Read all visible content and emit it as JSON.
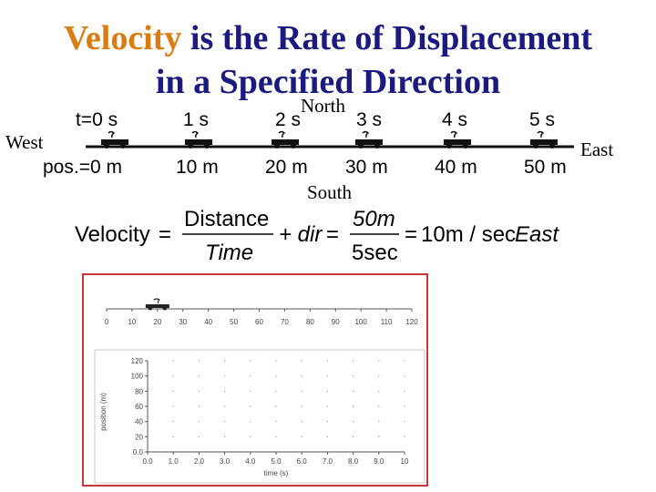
{
  "title": {
    "highlight": "Velocity",
    "line1_rest": " is the Rate of Displacement",
    "line2": "in a Specified Direction"
  },
  "compass": {
    "north": "North",
    "south": "South",
    "east": "East",
    "west": "West"
  },
  "timeline": {
    "times": [
      "t=0 s",
      "1 s",
      "2 s",
      "3 s",
      "4 s",
      "5 s"
    ],
    "positions": [
      "pos.=0 m",
      "10 m",
      "20 m",
      "30 m",
      "40 m",
      "50 m"
    ]
  },
  "equation": {
    "lhs": "Velocity",
    "frac1_num": "Distance",
    "frac1_den": "Time",
    "dir": "+ dir",
    "frac2_num": "50m",
    "frac2_den": "5sec",
    "result": "10m / sec",
    "result_dir": "East"
  },
  "graph": {
    "x_ticks": [
      "0",
      "10",
      "20",
      "30",
      "40",
      "50",
      "60",
      "70",
      "80",
      "90",
      "100",
      "110",
      "120"
    ],
    "car_position": 20,
    "y_ticks": [
      "0.0",
      "20",
      "40",
      "60",
      "80",
      "100",
      "120"
    ],
    "x2_ticks": [
      "0.0",
      "1.0",
      "2.0",
      "3.0",
      "4.0",
      "5.0",
      "6.0",
      "7.0",
      "8.0",
      "9.0",
      "10"
    ],
    "ylabel": "position (m)",
    "xlabel": "time (s)"
  },
  "colors": {
    "title": "#1a1a80",
    "highlight": "#d97c12",
    "panel_border": "#c8373a",
    "car": "#222222"
  }
}
